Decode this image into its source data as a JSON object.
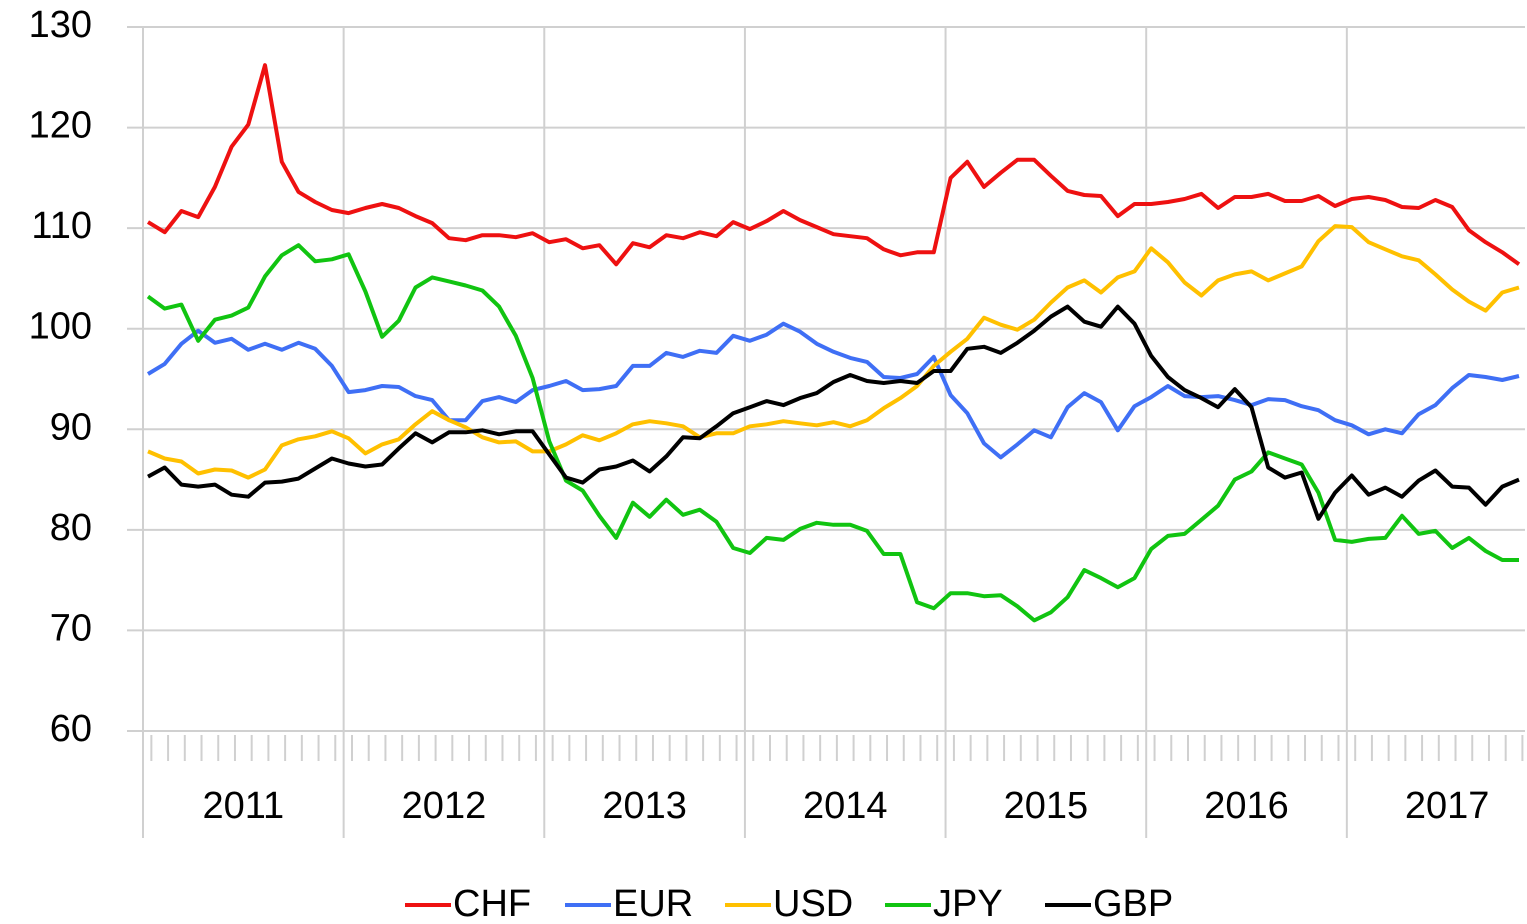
{
  "chart_data": {
    "type": "line",
    "categories": [
      null,
      null,
      null,
      null,
      null,
      null,
      null,
      null,
      null,
      null,
      null,
      null,
      null,
      null,
      null,
      null,
      null,
      null,
      null,
      null,
      null,
      null,
      null,
      null,
      null,
      null,
      null,
      null,
      null,
      null,
      null,
      null,
      null,
      null,
      null,
      null,
      null,
      null,
      null,
      null,
      null,
      null,
      null,
      null,
      null,
      null,
      null,
      null,
      null,
      null,
      null,
      null,
      null,
      null,
      null,
      null,
      null,
      null,
      null,
      null,
      null,
      null,
      null,
      null,
      null,
      null,
      null,
      null,
      null,
      null,
      null,
      null,
      null,
      null,
      null,
      null,
      null,
      null,
      null,
      null,
      null,
      null,
      null
    ],
    "groups": [
      "2011",
      "2012",
      "2013",
      "2014",
      "2015",
      "2016",
      "2017"
    ],
    "ylim": [
      60,
      130
    ],
    "yticks": [
      60,
      70,
      80,
      90,
      100,
      110,
      120,
      130
    ],
    "grid": true,
    "legend": "bottom",
    "series": [
      {
        "name": "CHF",
        "color": "#ee1111",
        "values": [
          110.6,
          109.6,
          111.7,
          111.1,
          114.1,
          118.1,
          120.3,
          126.2,
          116.6,
          113.6,
          112.6,
          111.8,
          111.5,
          112.0,
          112.4,
          112.0,
          111.2,
          110.5,
          109.0,
          108.8,
          109.3,
          109.3,
          109.1,
          109.5,
          108.6,
          108.9,
          108.0,
          108.3,
          106.4,
          108.5,
          108.1,
          109.3,
          109.0,
          109.6,
          109.2,
          110.6,
          109.9,
          110.7,
          111.7,
          110.8,
          110.1,
          109.4,
          109.2,
          109.0,
          107.9,
          107.3,
          107.6,
          107.6,
          115.0,
          116.6,
          114.1,
          115.5,
          116.8,
          116.8,
          115.2,
          113.7,
          113.3,
          113.2,
          111.2,
          112.4,
          112.4,
          112.6,
          112.9,
          113.4,
          112.0,
          113.1,
          113.1,
          113.4,
          112.7,
          112.7,
          113.2,
          112.2,
          112.9,
          113.1,
          112.8,
          112.1,
          112.0,
          112.8,
          112.1,
          109.8,
          108.6,
          107.6,
          106.4
        ]
      },
      {
        "name": "EUR",
        "color": "#3f6ff5",
        "values": [
          95.5,
          96.5,
          98.5,
          99.8,
          98.6,
          99.0,
          97.9,
          98.5,
          97.9,
          98.6,
          98.0,
          96.3,
          93.7,
          93.9,
          94.3,
          94.2,
          93.3,
          92.9,
          90.9,
          90.9,
          92.8,
          93.2,
          92.7,
          93.9,
          94.3,
          94.8,
          93.9,
          94.0,
          94.3,
          96.3,
          96.3,
          97.6,
          97.2,
          97.8,
          97.6,
          99.3,
          98.8,
          99.4,
          100.5,
          99.7,
          98.5,
          97.7,
          97.1,
          96.7,
          95.2,
          95.1,
          95.5,
          97.2,
          93.4,
          91.6,
          88.6,
          87.2,
          88.5,
          89.9,
          89.2,
          92.2,
          93.6,
          92.7,
          89.9,
          92.3,
          93.2,
          94.3,
          93.3,
          93.2,
          93.3,
          92.9,
          92.4,
          93.0,
          92.9,
          92.3,
          91.9,
          90.9,
          90.4,
          89.5,
          90.0,
          89.6,
          91.5,
          92.4,
          94.1,
          95.4,
          95.2,
          94.9,
          95.3
        ]
      },
      {
        "name": "USD",
        "color": "#ffc000",
        "values": [
          87.8,
          87.1,
          86.8,
          85.6,
          86.0,
          85.9,
          85.2,
          86.0,
          88.4,
          89.0,
          89.3,
          89.8,
          89.1,
          87.6,
          88.5,
          89.0,
          90.5,
          91.8,
          90.9,
          90.2,
          89.2,
          88.7,
          88.8,
          87.8,
          87.8,
          88.5,
          89.4,
          88.9,
          89.6,
          90.5,
          90.8,
          90.6,
          90.3,
          89.2,
          89.6,
          89.6,
          90.3,
          90.5,
          90.8,
          90.6,
          90.4,
          90.7,
          90.3,
          90.9,
          92.1,
          93.1,
          94.3,
          96.3,
          97.7,
          99.0,
          101.1,
          100.4,
          99.9,
          100.9,
          102.6,
          104.1,
          104.8,
          103.6,
          105.1,
          105.7,
          108.0,
          106.6,
          104.6,
          103.3,
          104.8,
          105.4,
          105.7,
          104.8,
          105.5,
          106.2,
          108.7,
          110.2,
          110.1,
          108.6,
          107.9,
          107.2,
          106.8,
          105.4,
          103.9,
          102.7,
          101.8,
          103.6,
          104.1
        ]
      },
      {
        "name": "JPY",
        "color": "#11c411",
        "values": [
          103.2,
          102.0,
          102.4,
          98.8,
          100.9,
          101.3,
          102.1,
          105.2,
          107.3,
          108.3,
          106.7,
          106.9,
          107.4,
          103.7,
          99.2,
          100.8,
          104.1,
          105.1,
          104.7,
          104.3,
          103.8,
          102.2,
          99.3,
          95.1,
          88.8,
          84.9,
          83.9,
          81.4,
          79.2,
          82.7,
          81.3,
          83.0,
          81.5,
          82.0,
          80.8,
          78.2,
          77.7,
          79.2,
          79.0,
          80.1,
          80.7,
          80.5,
          80.5,
          79.9,
          77.6,
          77.6,
          72.8,
          72.2,
          73.7,
          73.7,
          73.4,
          73.5,
          72.4,
          71.0,
          71.8,
          73.3,
          76.0,
          75.2,
          74.3,
          75.2,
          78.1,
          79.4,
          79.6,
          81.0,
          82.4,
          85.0,
          85.8,
          87.7,
          87.1,
          86.5,
          83.7,
          79.0,
          78.8,
          79.1,
          79.2,
          81.4,
          79.6,
          79.9,
          78.2,
          79.2,
          77.9,
          77.0,
          77.0
        ]
      },
      {
        "name": "GBP",
        "color": "#000000",
        "values": [
          85.3,
          86.2,
          84.5,
          84.3,
          84.5,
          83.5,
          83.3,
          84.7,
          84.8,
          85.1,
          86.1,
          87.1,
          86.6,
          86.3,
          86.5,
          88.1,
          89.6,
          88.7,
          89.7,
          89.7,
          89.9,
          89.5,
          89.8,
          89.8,
          87.5,
          85.2,
          84.7,
          86.0,
          86.3,
          86.9,
          85.8,
          87.3,
          89.2,
          89.1,
          90.3,
          91.6,
          92.2,
          92.8,
          92.4,
          93.1,
          93.6,
          94.7,
          95.4,
          94.8,
          94.6,
          94.8,
          94.6,
          95.8,
          95.8,
          98.0,
          98.2,
          97.6,
          98.6,
          99.8,
          101.2,
          102.2,
          100.7,
          100.2,
          102.2,
          100.5,
          97.3,
          95.2,
          93.9,
          93.1,
          92.2,
          94.0,
          92.2,
          86.2,
          85.2,
          85.7,
          81.1,
          83.7,
          85.4,
          83.5,
          84.2,
          83.3,
          84.9,
          85.9,
          84.3,
          84.2,
          82.5,
          84.3,
          85.0
        ]
      }
    ]
  }
}
